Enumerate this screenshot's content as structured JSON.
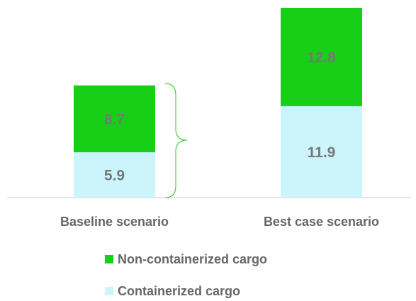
{
  "chart_data": {
    "type": "stacked-bar",
    "categories": [
      "Baseline scenario",
      "Best case scenario"
    ],
    "series": [
      {
        "name": "Containerized cargo",
        "color": "#ccf4fb",
        "values": [
          5.9,
          11.9
        ]
      },
      {
        "name": "Non-containerized cargo",
        "color": "#17cf17",
        "values": [
          8.7,
          12.8
        ]
      }
    ]
  }
}
